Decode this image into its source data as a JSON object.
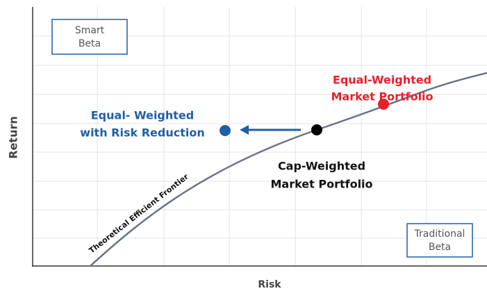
{
  "axes": {
    "x_label": "Risk",
    "y_label": "Return"
  },
  "quadrants": {
    "top_left": [
      "Smart",
      "Beta"
    ],
    "bottom_right": [
      "Traditional",
      "Beta"
    ]
  },
  "curve_label": "Theoretical Efficient Frontier",
  "points": [
    {
      "label": [
        "Equal- Weighted",
        "with Risk Reduction"
      ]
    },
    {
      "label": [
        "Cap-Weighted",
        "Market Portfolio"
      ]
    },
    {
      "label": [
        "Equal-Weighted",
        "Market Portfolio"
      ]
    }
  ]
}
